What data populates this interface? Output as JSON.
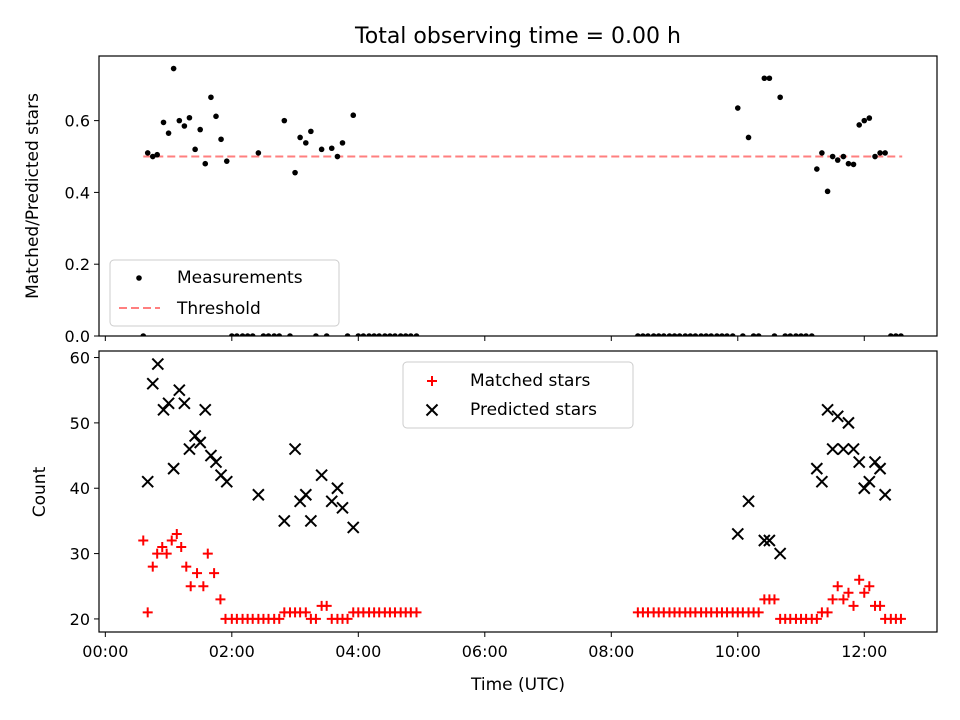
{
  "chart_data": [
    {
      "type": "scatter",
      "title": "Total observing time = 0.00 h",
      "xlabel": "",
      "ylabel": "Matched/Predicted stars",
      "xlim": [
        -0.1,
        13.15
      ],
      "ylim": [
        0,
        0.78
      ],
      "x_tick_labels": [
        "",
        "",
        "",
        "",
        "",
        "",
        ""
      ],
      "y_ticks": [
        0.0,
        0.2,
        0.4,
        0.6
      ],
      "y_tick_labels": [
        "0.0",
        "0.2",
        "0.4",
        "0.6"
      ],
      "legend": {
        "position": "lower-left",
        "entries": [
          "Measurements",
          "Threshold"
        ]
      },
      "series": [
        {
          "name": "Measurements",
          "marker": "dot",
          "color": "#000000",
          "points": [
            [
              0.6,
              0.0
            ],
            [
              0.67,
              0.51
            ],
            [
              0.75,
              0.5
            ],
            [
              0.82,
              0.505
            ],
            [
              0.92,
              0.595
            ],
            [
              1.0,
              0.565
            ],
            [
              1.08,
              0.745
            ],
            [
              1.17,
              0.6
            ],
            [
              1.25,
              0.585
            ],
            [
              1.33,
              0.608
            ],
            [
              1.42,
              0.52
            ],
            [
              1.5,
              0.575
            ],
            [
              1.58,
              0.48
            ],
            [
              1.67,
              0.665
            ],
            [
              1.75,
              0.612
            ],
            [
              1.83,
              0.548
            ],
            [
              1.92,
              0.487
            ],
            [
              2.0,
              0.0
            ],
            [
              2.08,
              0.0
            ],
            [
              2.17,
              0.0
            ],
            [
              2.25,
              0.0
            ],
            [
              2.33,
              0.0
            ],
            [
              2.42,
              0.51
            ],
            [
              2.5,
              0.0
            ],
            [
              2.58,
              0.0
            ],
            [
              2.67,
              0.0
            ],
            [
              2.75,
              0.0
            ],
            [
              2.83,
              0.6
            ],
            [
              2.92,
              0.0
            ],
            [
              3.0,
              0.455
            ],
            [
              3.08,
              0.553
            ],
            [
              3.17,
              0.538
            ],
            [
              3.25,
              0.57
            ],
            [
              3.33,
              0.0
            ],
            [
              3.42,
              0.52
            ],
            [
              3.5,
              0.0
            ],
            [
              3.58,
              0.523
            ],
            [
              3.67,
              0.5
            ],
            [
              3.75,
              0.538
            ],
            [
              3.83,
              0.0
            ],
            [
              3.92,
              0.615
            ],
            [
              4.0,
              0.0
            ],
            [
              4.08,
              0.0
            ],
            [
              4.17,
              0.0
            ],
            [
              4.25,
              0.0
            ],
            [
              4.33,
              0.0
            ],
            [
              4.42,
              0.0
            ],
            [
              4.5,
              0.0
            ],
            [
              4.58,
              0.0
            ],
            [
              4.67,
              0.0
            ],
            [
              4.75,
              0.0
            ],
            [
              4.83,
              0.0
            ],
            [
              4.92,
              0.0
            ],
            [
              8.42,
              0.0
            ],
            [
              8.5,
              0.0
            ],
            [
              8.58,
              0.0
            ],
            [
              8.67,
              0.0
            ],
            [
              8.75,
              0.0
            ],
            [
              8.83,
              0.0
            ],
            [
              8.92,
              0.0
            ],
            [
              9.0,
              0.0
            ],
            [
              9.08,
              0.0
            ],
            [
              9.17,
              0.0
            ],
            [
              9.25,
              0.0
            ],
            [
              9.33,
              0.0
            ],
            [
              9.42,
              0.0
            ],
            [
              9.5,
              0.0
            ],
            [
              9.58,
              0.0
            ],
            [
              9.67,
              0.0
            ],
            [
              9.75,
              0.0
            ],
            [
              9.83,
              0.0
            ],
            [
              9.92,
              0.0
            ],
            [
              10.0,
              0.635
            ],
            [
              10.08,
              0.0
            ],
            [
              10.17,
              0.553
            ],
            [
              10.25,
              0.0
            ],
            [
              10.33,
              0.0
            ],
            [
              10.42,
              0.718
            ],
            [
              10.5,
              0.718
            ],
            [
              10.58,
              0.0
            ],
            [
              10.67,
              0.665
            ],
            [
              10.75,
              0.0
            ],
            [
              10.83,
              0.0
            ],
            [
              10.92,
              0.0
            ],
            [
              11.0,
              0.0
            ],
            [
              11.08,
              0.0
            ],
            [
              11.17,
              0.0
            ],
            [
              11.25,
              0.465
            ],
            [
              11.33,
              0.51
            ],
            [
              11.42,
              0.403
            ],
            [
              11.5,
              0.5
            ],
            [
              11.58,
              0.49
            ],
            [
              11.67,
              0.5
            ],
            [
              11.75,
              0.48
            ],
            [
              11.83,
              0.478
            ],
            [
              11.92,
              0.588
            ],
            [
              12.0,
              0.6
            ],
            [
              12.08,
              0.607
            ],
            [
              12.17,
              0.5
            ],
            [
              12.25,
              0.51
            ],
            [
              12.33,
              0.51
            ],
            [
              12.42,
              0.0
            ],
            [
              12.5,
              0.0
            ],
            [
              12.58,
              0.0
            ]
          ]
        },
        {
          "name": "Threshold",
          "style": "dashed",
          "color": "#ff7f7f",
          "points": [
            [
              0.6,
              0.5
            ],
            [
              12.6,
              0.5
            ]
          ]
        }
      ]
    },
    {
      "type": "scatter",
      "title": "",
      "xlabel": "Time (UTC)",
      "ylabel": "Count",
      "xlim": [
        -0.1,
        13.15
      ],
      "ylim": [
        18,
        61
      ],
      "x_ticks": [
        0,
        2,
        4,
        6,
        8,
        10,
        12
      ],
      "x_tick_labels": [
        "00:00",
        "02:00",
        "04:00",
        "06:00",
        "08:00",
        "10:00",
        "12:00"
      ],
      "y_ticks": [
        20,
        30,
        40,
        50,
        60
      ],
      "y_tick_labels": [
        "20",
        "30",
        "40",
        "50",
        "60"
      ],
      "legend": {
        "position": "top-center",
        "entries": [
          "Matched stars",
          "Predicted stars"
        ]
      },
      "series": [
        {
          "name": "Matched stars",
          "marker": "plus",
          "color": "#ff0000",
          "points": [
            [
              0.6,
              32
            ],
            [
              0.67,
              21
            ],
            [
              0.75,
              28
            ],
            [
              0.82,
              30
            ],
            [
              0.9,
              31
            ],
            [
              0.97,
              30
            ],
            [
              1.05,
              32
            ],
            [
              1.13,
              33
            ],
            [
              1.2,
              31
            ],
            [
              1.28,
              28
            ],
            [
              1.35,
              25
            ],
            [
              1.45,
              27
            ],
            [
              1.55,
              25
            ],
            [
              1.62,
              30
            ],
            [
              1.72,
              27
            ],
            [
              1.82,
              23
            ],
            [
              1.9,
              20
            ],
            [
              2.0,
              20
            ],
            [
              2.08,
              20
            ],
            [
              2.17,
              20
            ],
            [
              2.25,
              20
            ],
            [
              2.33,
              20
            ],
            [
              2.42,
              20
            ],
            [
              2.5,
              20
            ],
            [
              2.58,
              20
            ],
            [
              2.67,
              20
            ],
            [
              2.75,
              20
            ],
            [
              2.83,
              21
            ],
            [
              2.92,
              21
            ],
            [
              3.0,
              21
            ],
            [
              3.08,
              21
            ],
            [
              3.17,
              21
            ],
            [
              3.25,
              20
            ],
            [
              3.33,
              20
            ],
            [
              3.42,
              22
            ],
            [
              3.5,
              22
            ],
            [
              3.58,
              20
            ],
            [
              3.67,
              20
            ],
            [
              3.75,
              20
            ],
            [
              3.83,
              20
            ],
            [
              3.92,
              21
            ],
            [
              4.0,
              21
            ],
            [
              4.08,
              21
            ],
            [
              4.17,
              21
            ],
            [
              4.25,
              21
            ],
            [
              4.33,
              21
            ],
            [
              4.42,
              21
            ],
            [
              4.5,
              21
            ],
            [
              4.58,
              21
            ],
            [
              4.67,
              21
            ],
            [
              4.75,
              21
            ],
            [
              4.83,
              21
            ],
            [
              4.92,
              21
            ],
            [
              8.42,
              21
            ],
            [
              8.5,
              21
            ],
            [
              8.58,
              21
            ],
            [
              8.67,
              21
            ],
            [
              8.75,
              21
            ],
            [
              8.83,
              21
            ],
            [
              8.92,
              21
            ],
            [
              9.0,
              21
            ],
            [
              9.08,
              21
            ],
            [
              9.17,
              21
            ],
            [
              9.25,
              21
            ],
            [
              9.33,
              21
            ],
            [
              9.42,
              21
            ],
            [
              9.5,
              21
            ],
            [
              9.58,
              21
            ],
            [
              9.67,
              21
            ],
            [
              9.75,
              21
            ],
            [
              9.83,
              21
            ],
            [
              9.92,
              21
            ],
            [
              10.0,
              21
            ],
            [
              10.08,
              21
            ],
            [
              10.17,
              21
            ],
            [
              10.25,
              21
            ],
            [
              10.33,
              21
            ],
            [
              10.42,
              23
            ],
            [
              10.5,
              23
            ],
            [
              10.58,
              23
            ],
            [
              10.67,
              20
            ],
            [
              10.75,
              20
            ],
            [
              10.83,
              20
            ],
            [
              10.92,
              20
            ],
            [
              11.0,
              20
            ],
            [
              11.08,
              20
            ],
            [
              11.17,
              20
            ],
            [
              11.25,
              20
            ],
            [
              11.33,
              21
            ],
            [
              11.42,
              21
            ],
            [
              11.5,
              23
            ],
            [
              11.58,
              25
            ],
            [
              11.67,
              23
            ],
            [
              11.75,
              24
            ],
            [
              11.83,
              22
            ],
            [
              11.92,
              26
            ],
            [
              12.0,
              24
            ],
            [
              12.08,
              25
            ],
            [
              12.17,
              22
            ],
            [
              12.25,
              22
            ],
            [
              12.33,
              20
            ],
            [
              12.42,
              20
            ],
            [
              12.5,
              20
            ],
            [
              12.58,
              20
            ]
          ]
        },
        {
          "name": "Predicted stars",
          "marker": "x",
          "color": "#000000",
          "points": [
            [
              0.67,
              41
            ],
            [
              0.75,
              56
            ],
            [
              0.83,
              59
            ],
            [
              0.92,
              52
            ],
            [
              1.0,
              53
            ],
            [
              1.08,
              43
            ],
            [
              1.17,
              55
            ],
            [
              1.25,
              53
            ],
            [
              1.33,
              46
            ],
            [
              1.42,
              48
            ],
            [
              1.5,
              47
            ],
            [
              1.58,
              52
            ],
            [
              1.67,
              45
            ],
            [
              1.75,
              44
            ],
            [
              1.83,
              42
            ],
            [
              1.92,
              41
            ],
            [
              2.42,
              39
            ],
            [
              2.83,
              35
            ],
            [
              3.0,
              46
            ],
            [
              3.08,
              38
            ],
            [
              3.17,
              39
            ],
            [
              3.25,
              35
            ],
            [
              3.42,
              42
            ],
            [
              3.58,
              38
            ],
            [
              3.67,
              40
            ],
            [
              3.75,
              37
            ],
            [
              3.92,
              34
            ],
            [
              10.0,
              33
            ],
            [
              10.17,
              38
            ],
            [
              10.42,
              32
            ],
            [
              10.5,
              32
            ],
            [
              10.67,
              30
            ],
            [
              11.25,
              43
            ],
            [
              11.33,
              41
            ],
            [
              11.42,
              52
            ],
            [
              11.5,
              46
            ],
            [
              11.58,
              51
            ],
            [
              11.67,
              46
            ],
            [
              11.75,
              50
            ],
            [
              11.83,
              46
            ],
            [
              11.92,
              44
            ],
            [
              12.0,
              40
            ],
            [
              12.08,
              41
            ],
            [
              12.17,
              44
            ],
            [
              12.25,
              43
            ],
            [
              12.33,
              39
            ]
          ]
        }
      ]
    }
  ]
}
